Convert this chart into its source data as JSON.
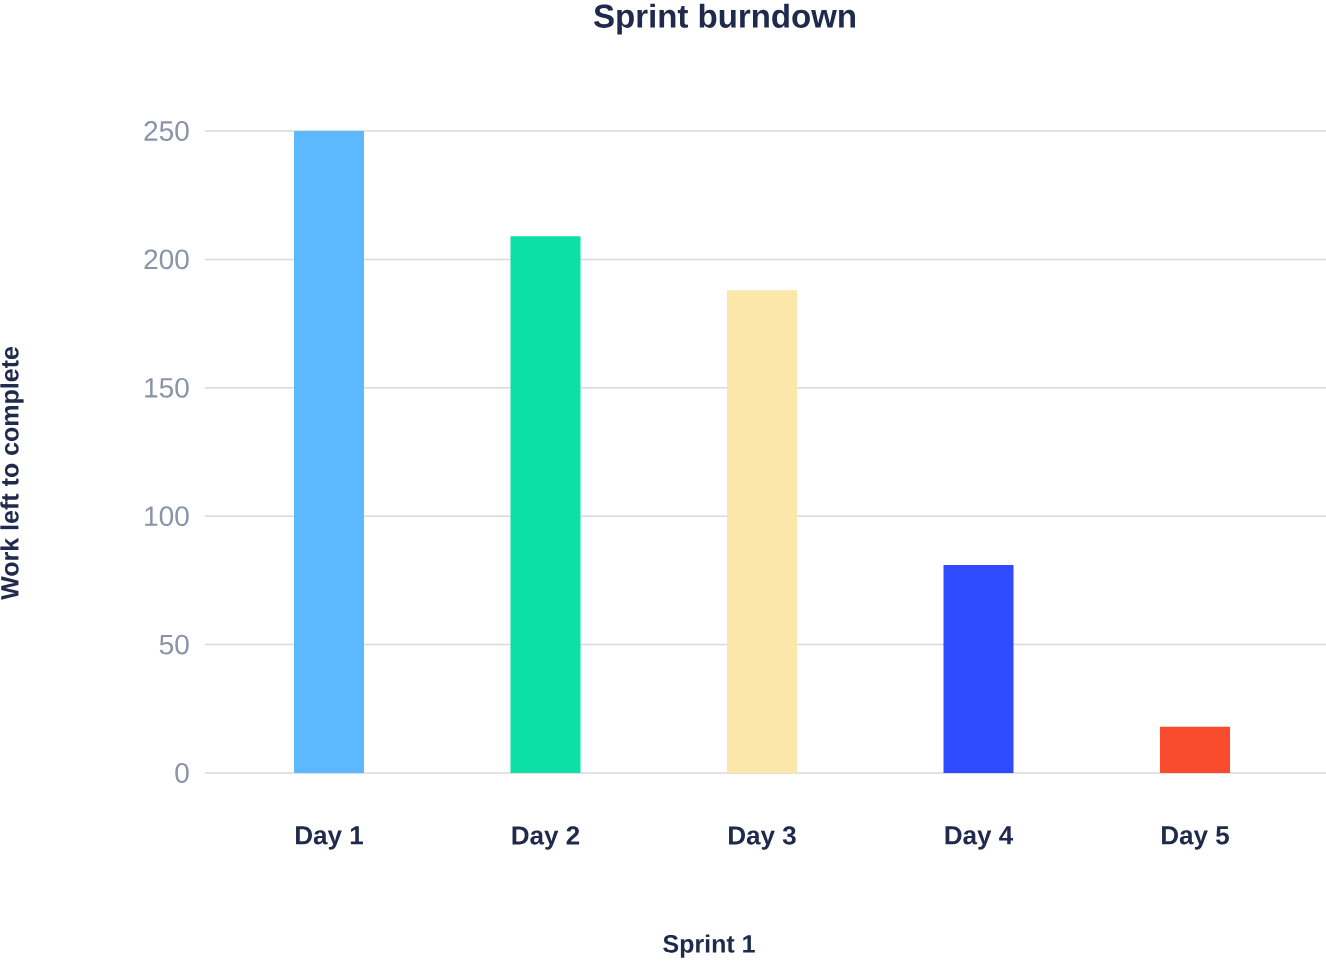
{
  "chart_data": {
    "type": "bar",
    "title": "Sprint burndown",
    "xlabel": "Sprint 1",
    "ylabel": "Work left to complete",
    "categories": [
      "Day 1",
      "Day 2",
      "Day 3",
      "Day 4",
      "Day 5"
    ],
    "values": [
      250,
      209,
      188,
      81,
      18
    ],
    "colors": [
      "#5cb8ff",
      "#0de0a6",
      "#fce7aa",
      "#2e4bff",
      "#f84a2c"
    ],
    "ylim": [
      0,
      250
    ],
    "yticks": [
      0,
      50,
      100,
      150,
      200,
      250
    ],
    "grid": "y"
  }
}
